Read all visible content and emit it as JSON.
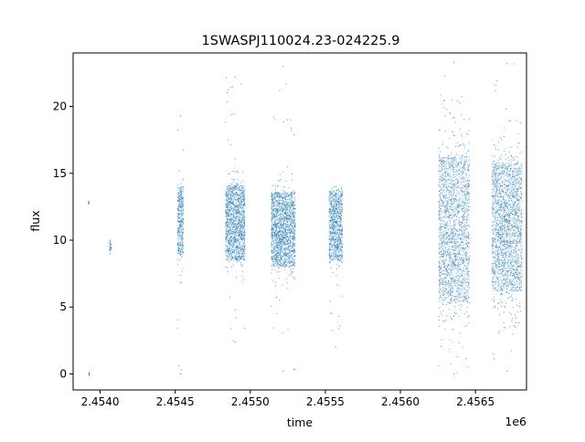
{
  "chart_data": {
    "type": "scatter",
    "title": "1SWASPJ110024.23-024225.9",
    "xlabel": "time",
    "ylabel": "flux",
    "x_offset_label": "1e6",
    "x_scale_factor": 1000000,
    "xlim": [
      2453820,
      2456840
    ],
    "ylim": [
      -1.2,
      24.0
    ],
    "x_ticks": [
      2.454,
      2.4545,
      2.455,
      2.4555,
      2.456,
      2.4565
    ],
    "x_tick_labels": [
      "2.4540",
      "2.4545",
      "2.4550",
      "2.4555",
      "2.4560",
      "2.4565"
    ],
    "y_ticks": [
      0,
      5,
      10,
      15,
      20
    ],
    "y_tick_labels": [
      "0",
      "5",
      "10",
      "15",
      "20"
    ],
    "grid": false,
    "marker_color": "#1f77b4",
    "clusters": [
      {
        "x_start": 2453923,
        "x_end": 2453924,
        "y_center": 12.8,
        "core_half": 0.1,
        "spread": 0.1,
        "outlier_max": 12.9,
        "outlier_min": 12.7
      },
      {
        "x_start": 2453926,
        "x_end": 2453927,
        "y_center": 0.0,
        "core_half": 0.05,
        "spread": 0.05,
        "outlier_max": 0.1,
        "outlier_min": -0.1
      },
      {
        "x_start": 2454060,
        "x_end": 2454075,
        "y_center": 9.5,
        "core_half": 0.3,
        "spread": 0.4,
        "outlier_max": 10.0,
        "outlier_min": 9.0
      },
      {
        "x_start": 2454515,
        "x_end": 2454555,
        "y_center": 11.5,
        "core_half": 2.5,
        "spread": 3.0,
        "outlier_max": 19.3,
        "outlier_min": 0.0
      },
      {
        "x_start": 2454835,
        "x_end": 2454965,
        "y_center": 11.3,
        "core_half": 2.8,
        "spread": 3.2,
        "outlier_max": 22.2,
        "outlier_min": 2.4
      },
      {
        "x_start": 2455140,
        "x_end": 2455300,
        "y_center": 10.8,
        "core_half": 2.8,
        "spread": 3.2,
        "outlier_max": 23.0,
        "outlier_min": 0.2
      },
      {
        "x_start": 2455525,
        "x_end": 2455615,
        "y_center": 11.1,
        "core_half": 2.6,
        "spread": 3.0,
        "outlier_max": 14.0,
        "outlier_min": 2.0
      },
      {
        "x_start": 2456255,
        "x_end": 2456460,
        "y_center": 10.8,
        "core_half": 5.5,
        "spread": 7.0,
        "outlier_max": 23.3,
        "outlier_min": 0.0
      },
      {
        "x_start": 2456610,
        "x_end": 2456810,
        "y_center": 11.0,
        "core_half": 4.8,
        "spread": 6.0,
        "outlier_max": 23.2,
        "outlier_min": 0.2
      }
    ]
  }
}
